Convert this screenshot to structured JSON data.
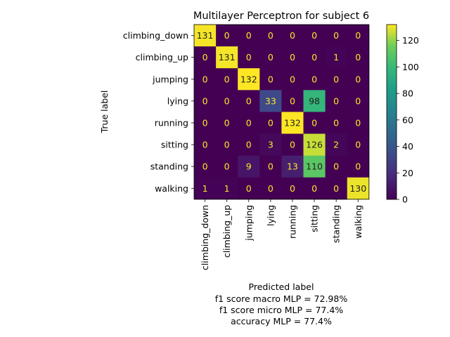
{
  "chart_data": {
    "type": "heatmap",
    "title": "Multilayer Perceptron for subject 6",
    "xlabel": "Predicted label",
    "ylabel": "True label",
    "metrics": [
      "f1 score macro MLP = 72.98%",
      "f1 score micro MLP = 77.4%",
      "accuracy MLP = 77.4%"
    ],
    "classes": [
      "climbing_down",
      "climbing_up",
      "jumping",
      "lying",
      "running",
      "sitting",
      "standing",
      "walking"
    ],
    "matrix": [
      [
        131,
        0,
        0,
        0,
        0,
        0,
        0,
        0
      ],
      [
        0,
        131,
        0,
        0,
        0,
        0,
        1,
        0
      ],
      [
        0,
        0,
        132,
        0,
        0,
        0,
        0,
        0
      ],
      [
        0,
        0,
        0,
        33,
        0,
        98,
        0,
        0
      ],
      [
        0,
        0,
        0,
        0,
        132,
        0,
        0,
        0
      ],
      [
        0,
        0,
        0,
        3,
        0,
        126,
        2,
        0
      ],
      [
        0,
        0,
        9,
        0,
        13,
        110,
        0,
        0
      ],
      [
        1,
        1,
        0,
        0,
        0,
        0,
        0,
        130
      ]
    ],
    "colormap": "viridis",
    "vmin": 0,
    "vmax": 132,
    "colorbar_ticks": [
      0,
      20,
      40,
      60,
      80,
      100,
      120
    ],
    "text_color_low": "#fde725",
    "text_color_high": "#1f1f1f"
  }
}
